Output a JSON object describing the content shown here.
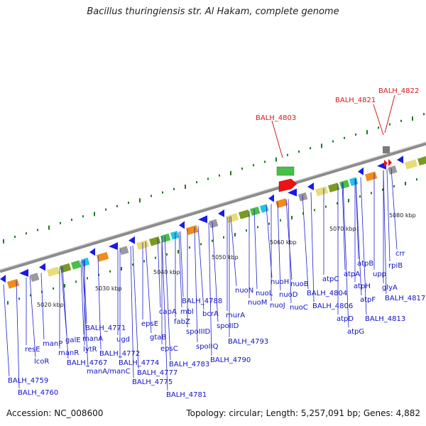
{
  "title": "Bacillus thuringiensis str. Al Hakam, complete genome",
  "footer": {
    "accession": "Accession: NC_008600",
    "summary": "Topology: circular; Length: 5,257,091 bp; Genes: 4,882"
  },
  "ticks": [
    "5020 kbp",
    "5030 kbp",
    "5040 kbp",
    "5050 kbp",
    "5060 kbp",
    "5070 kbp",
    "5080 kbp"
  ],
  "genes": [
    "BALH_4759",
    "BALH_4760",
    "resE",
    "lcoR",
    "manP",
    "manR",
    "galE",
    "manA",
    "lytR",
    "BALH_4767",
    "BALH_4771",
    "ugd",
    "manA/manC",
    "BALH_4772",
    "BALH_4774",
    "BALH_4777",
    "BALH_4775",
    "epsE",
    "gtaB",
    "capA",
    "epsC",
    "BALH_4781",
    "mbl",
    "fabZ",
    "BALH_4783",
    "BALH_4788",
    "spoIIID",
    "bcrA",
    "spoIIQ",
    "murA",
    "spoIID",
    "BALH_4790",
    "BALH_4793",
    "nuoN",
    "nuoL",
    "nuoM",
    "nuoH",
    "nuoD",
    "nuoJ",
    "nuoB",
    "nuoC",
    "atpC",
    "BALH_4804",
    "BALH_4806",
    "atpD",
    "atpG",
    "atpA",
    "atpH",
    "atpF",
    "atpB",
    "upp",
    "BALH_4813",
    "rpiB",
    "glyA",
    "crr",
    "BALH_4817",
    "BALH_4803",
    "BALH_4821",
    "BALH_4822"
  ],
  "colors": {
    "backbone": "#8c8c8c",
    "arrows": "#1a1ae6",
    "label": "#1010c8",
    "highlight_label": "#d41a1a",
    "tick": "#1e7a1e"
  }
}
